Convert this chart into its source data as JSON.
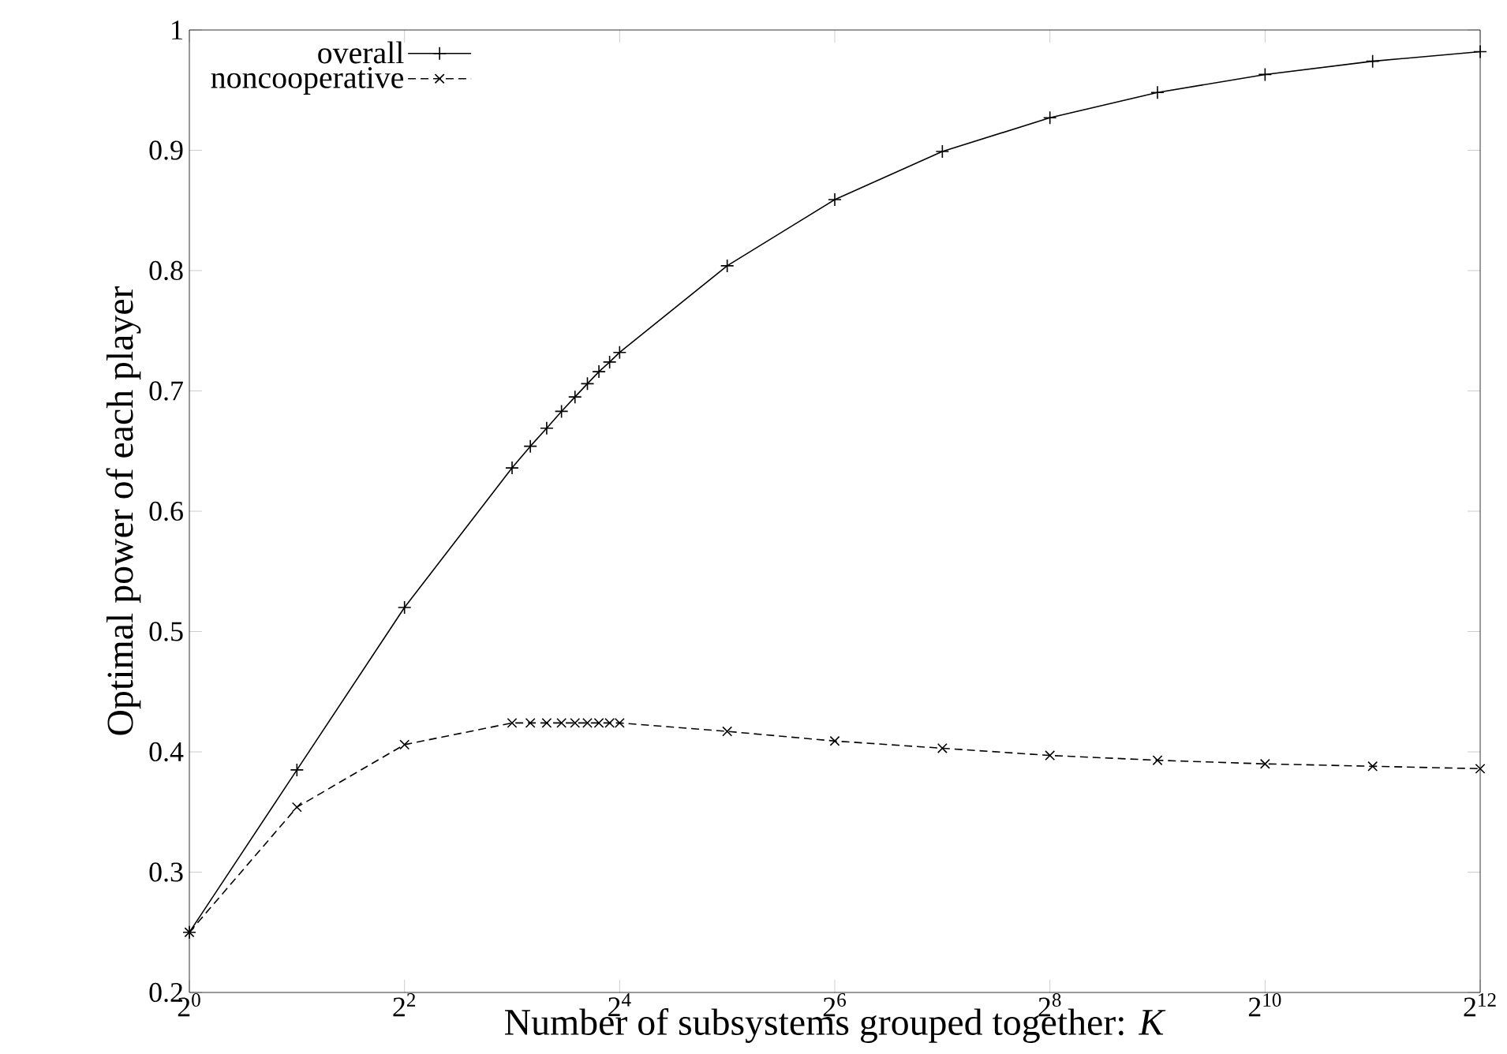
{
  "chart_data": {
    "type": "line",
    "xlabel": "Number of subsystems grouped together: *K*",
    "ylabel": "Optimal power of each player",
    "x": [
      1,
      2,
      4,
      8,
      9,
      10,
      11,
      12,
      13,
      14,
      15,
      16,
      32,
      64,
      128,
      256,
      512,
      1024,
      2048,
      4096
    ],
    "series": [
      {
        "name": "overall",
        "color": "#000000",
        "marker": "plus",
        "line_style": "solid",
        "values": [
          0.25,
          0.385,
          0.52,
          0.636,
          0.654,
          0.669,
          0.683,
          0.695,
          0.706,
          0.716,
          0.724,
          0.732,
          0.804,
          0.859,
          0.899,
          0.927,
          0.948,
          0.963,
          0.974,
          0.982
        ]
      },
      {
        "name": "noncooperative",
        "color": "#000000",
        "marker": "cross",
        "line_style": "dashed",
        "values": [
          0.25,
          0.354,
          0.406,
          0.424,
          0.424,
          0.424,
          0.424,
          0.424,
          0.424,
          0.424,
          0.424,
          0.424,
          0.417,
          0.409,
          0.403,
          0.397,
          0.393,
          0.39,
          0.388,
          0.386
        ]
      }
    ],
    "log": "x",
    "xlim": [
      1,
      4096
    ],
    "xticks": [
      {
        "value": 1,
        "label": "2$^{0}$"
      },
      {
        "value": 4,
        "label": "2$^{2}$"
      },
      {
        "value": 16,
        "label": "2$^{4}$"
      },
      {
        "value": 64,
        "label": "2$^{6}$"
      },
      {
        "value": 256,
        "label": "2$^{8}$"
      },
      {
        "value": 1024,
        "label": "2$^{10}$"
      },
      {
        "value": 4096,
        "label": "2$^{12}$"
      }
    ],
    "ylim": [
      0.2,
      1
    ],
    "yticks": [
      0.2,
      0.3,
      0.4,
      0.5,
      0.6,
      0.7,
      0.8,
      0.9,
      1
    ],
    "grid": false,
    "legend": "top left"
  }
}
